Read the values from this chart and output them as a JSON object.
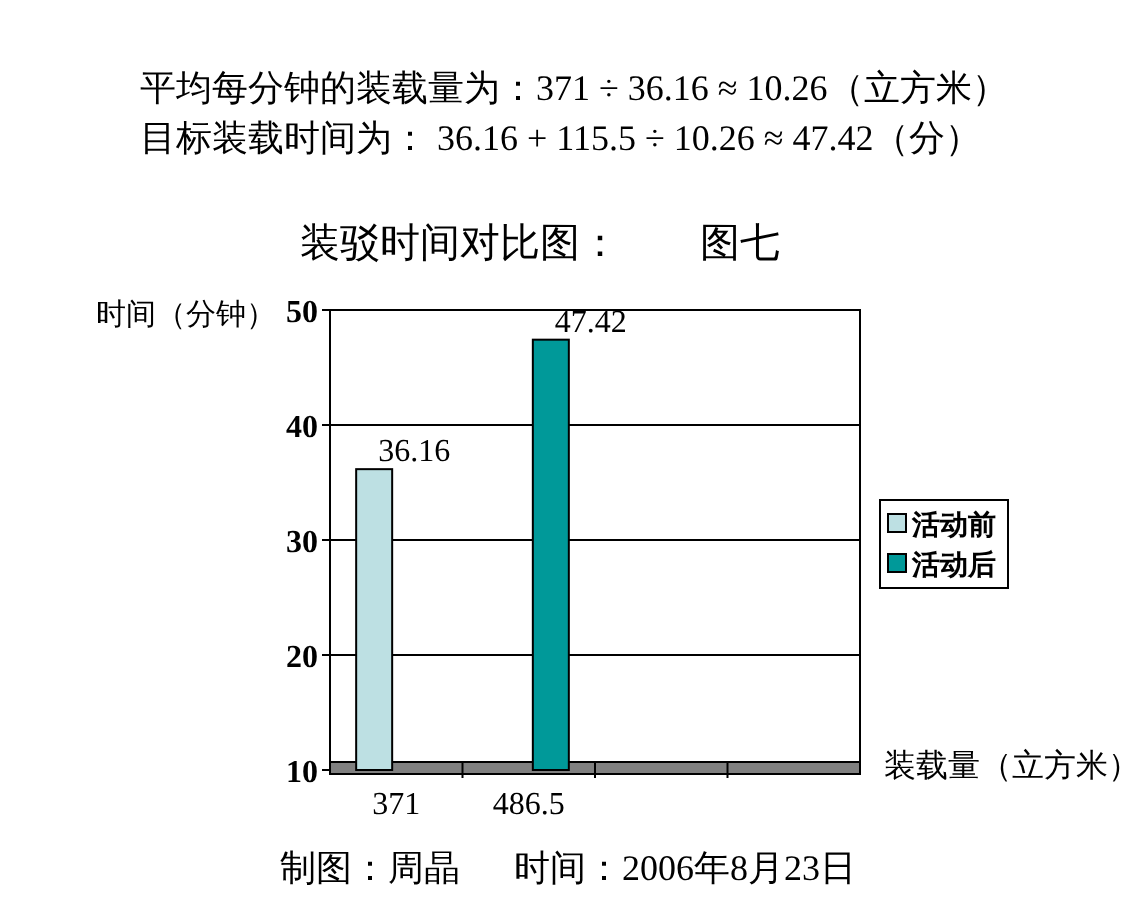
{
  "chart_data": {
    "type": "bar",
    "title": "装驳时间对比图：        图七",
    "annotations": [
      "平均每分钟的装载量为：371 ÷ 36.16 ≈ 10.26（立方米）",
      "目标装载时间为： 36.16 + 115.5 ÷ 10.26 ≈ 47.42（分）",
      "制图：周晶      时间：2006年8月23日"
    ],
    "ylabel": "时间（分钟）",
    "xlabel": "装载量（立方米）",
    "categories": [
      "371",
      "486.5",
      null,
      null
    ],
    "series": [
      {
        "name": "活动前",
        "color": "#bde0e3",
        "values": [
          36.16,
          null,
          null,
          null
        ]
      },
      {
        "name": "活动后",
        "color": "#009999",
        "values": [
          null,
          47.42,
          null,
          null
        ]
      }
    ],
    "ylim": [
      10,
      50
    ],
    "yticks": [
      10,
      20,
      30,
      40,
      50
    ],
    "grid": "y",
    "legend": "right",
    "data_labels": true
  }
}
